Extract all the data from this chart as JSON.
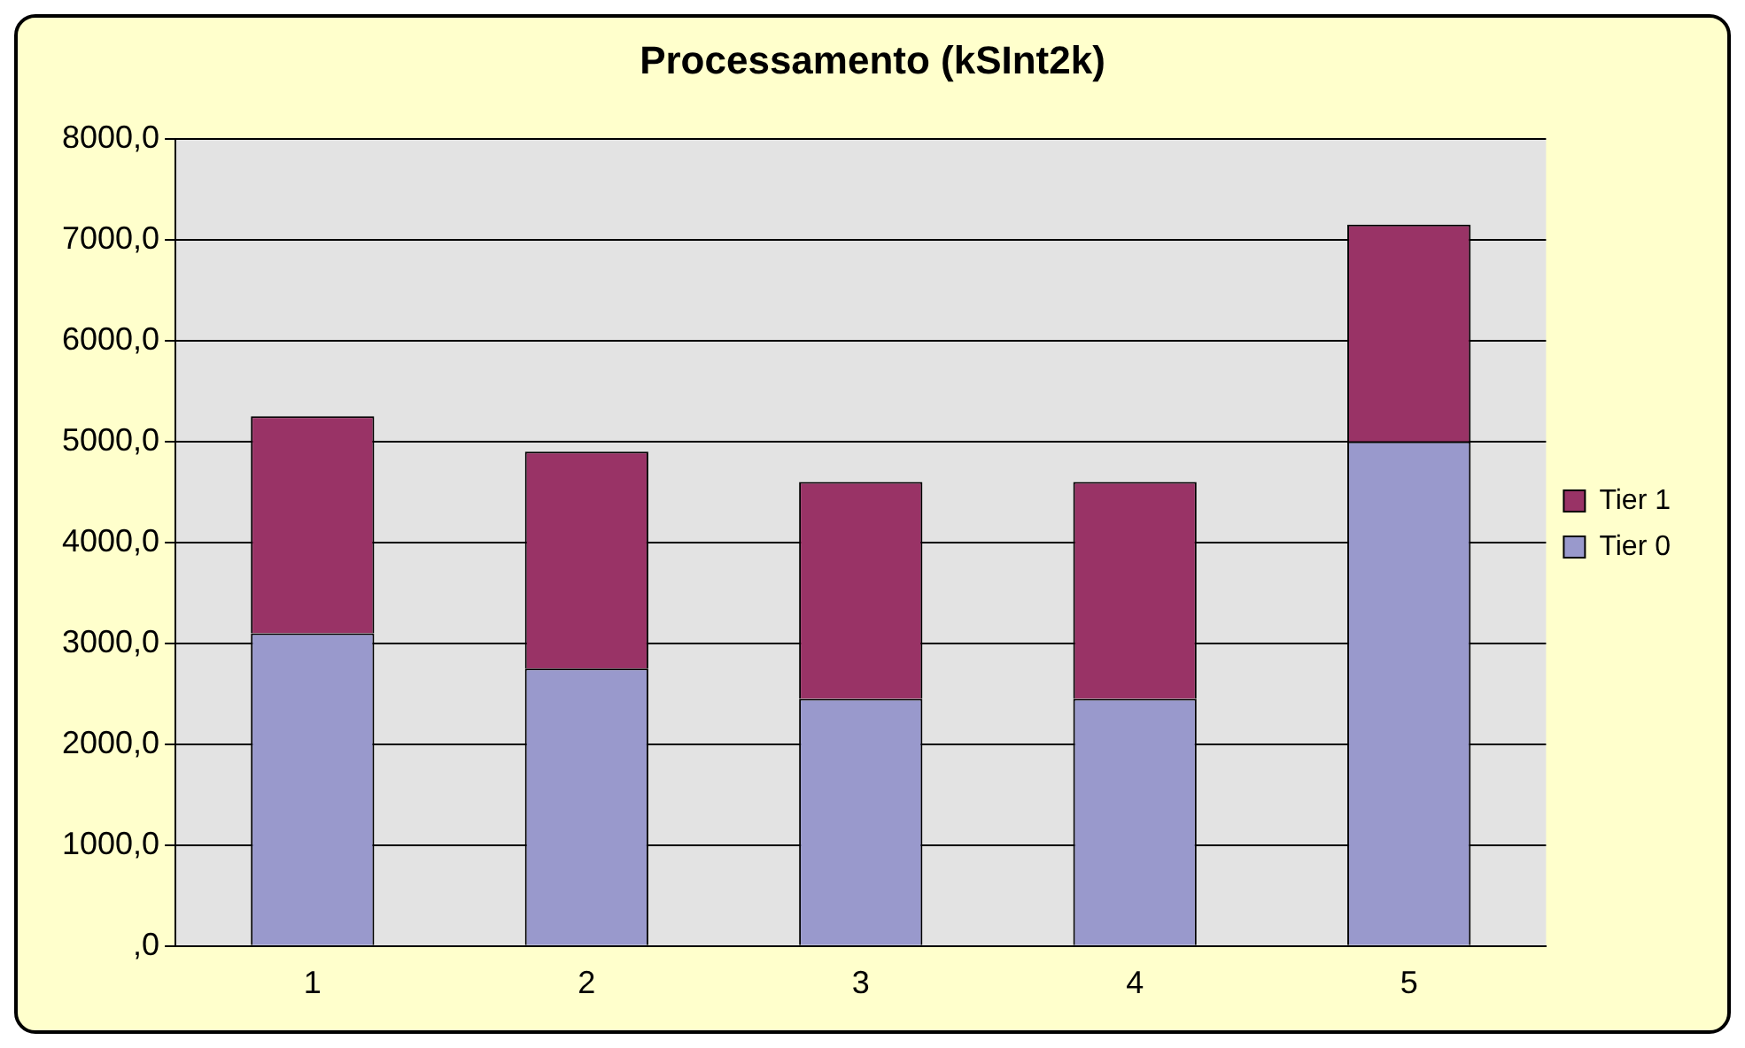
{
  "chart_data": {
    "type": "bar",
    "title": "Processamento (kSInt2k)",
    "categories": [
      "1",
      "2",
      "3",
      "4",
      "5"
    ],
    "stacked": true,
    "series": [
      {
        "name": "Tier 0",
        "color": "#9999cc",
        "values": [
          3100,
          2750,
          2450,
          2450,
          5000
        ]
      },
      {
        "name": "Tier 1",
        "color": "#993366",
        "values": [
          2150,
          2150,
          2150,
          2150,
          2150
        ]
      }
    ],
    "ylim": [
      0,
      8000
    ],
    "yticks": [
      {
        "value": 0,
        "label": ",0"
      },
      {
        "value": 1000,
        "label": "1000,0"
      },
      {
        "value": 2000,
        "label": "2000,0"
      },
      {
        "value": 3000,
        "label": "3000,0"
      },
      {
        "value": 4000,
        "label": "4000,0"
      },
      {
        "value": 5000,
        "label": "5000,0"
      },
      {
        "value": 6000,
        "label": "6000,0"
      },
      {
        "value": 7000,
        "label": "7000,0"
      },
      {
        "value": 8000,
        "label": "8000,0"
      }
    ],
    "grid": "y",
    "legend": "right"
  }
}
